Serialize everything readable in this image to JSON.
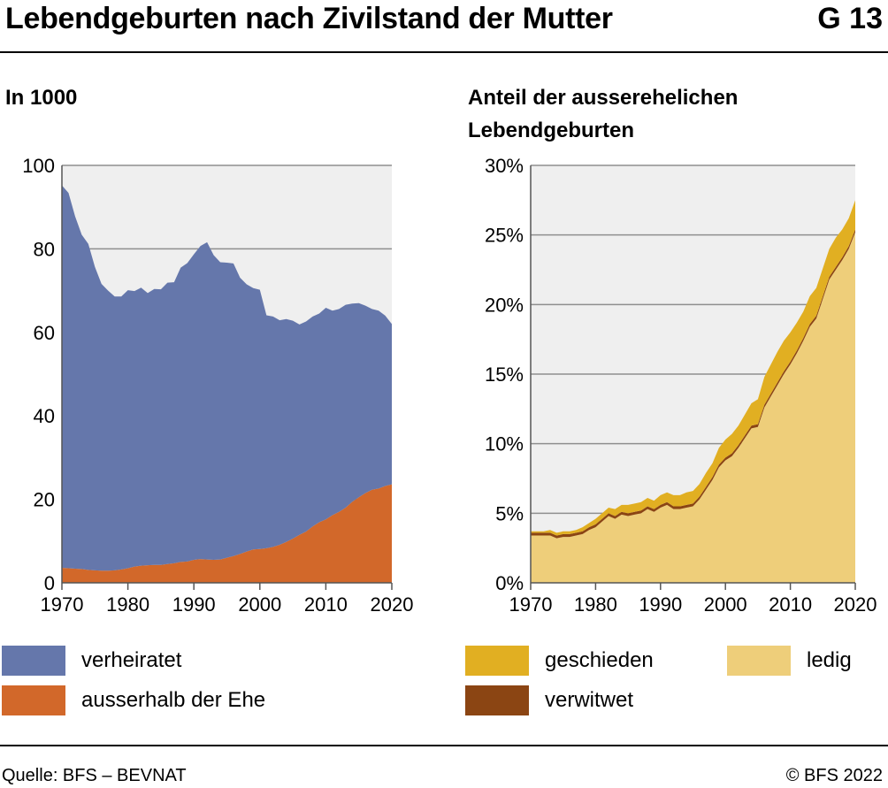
{
  "header": {
    "title": "Lebendgeburten nach Zivilstand der Mutter",
    "code": "G 13"
  },
  "footer": {
    "source": "Quelle: BFS – BEVNAT",
    "copyright": "© BFS 2022"
  },
  "chart_data": [
    {
      "type": "area",
      "title": "In 1000",
      "stacked": true,
      "x": [
        1970,
        1971,
        1972,
        1973,
        1974,
        1975,
        1976,
        1977,
        1978,
        1979,
        1980,
        1981,
        1982,
        1983,
        1984,
        1985,
        1986,
        1987,
        1988,
        1989,
        1990,
        1991,
        1992,
        1993,
        1994,
        1995,
        1996,
        1997,
        1998,
        1999,
        2000,
        2001,
        2002,
        2003,
        2004,
        2005,
        2006,
        2007,
        2008,
        2009,
        2010,
        2011,
        2012,
        2013,
        2014,
        2015,
        2016,
        2017,
        2018,
        2019,
        2020
      ],
      "series": [
        {
          "name": "ausserhalb der Ehe",
          "color": "#d2682a",
          "values": [
            3.6,
            3.5,
            3.4,
            3.3,
            3.1,
            3.0,
            2.9,
            2.9,
            3.0,
            3.2,
            3.5,
            3.9,
            4.1,
            4.2,
            4.3,
            4.3,
            4.5,
            4.7,
            5.0,
            5.1,
            5.5,
            5.7,
            5.6,
            5.5,
            5.6,
            6.0,
            6.4,
            6.9,
            7.5,
            8.0,
            8.1,
            8.3,
            8.6,
            9.1,
            9.8,
            10.6,
            11.5,
            12.3,
            13.5,
            14.5,
            15.2,
            16.2,
            17.0,
            18.0,
            19.4,
            20.5,
            21.5,
            22.3,
            22.6,
            23.2,
            23.6
          ]
        },
        {
          "name": "verheiratet",
          "color": "#6577ab",
          "values": [
            91.6,
            89.9,
            84.4,
            80.1,
            78.1,
            72.7,
            68.7,
            67.1,
            65.6,
            65.4,
            66.6,
            66.0,
            66.6,
            65.2,
            66.1,
            66.0,
            67.4,
            67.3,
            70.5,
            71.5,
            73.2,
            75.0,
            76.0,
            73.0,
            71.2,
            70.7,
            70.1,
            66.2,
            64.0,
            62.6,
            62.1,
            55.8,
            55.2,
            53.8,
            53.4,
            52.2,
            50.4,
            50.3,
            50.3,
            50.0,
            50.7,
            49.0,
            48.6,
            48.6,
            47.5,
            46.5,
            44.9,
            43.3,
            42.6,
            40.8,
            38.4
          ]
        }
      ],
      "ylim": [
        0,
        100
      ],
      "yticks": [
        "0",
        "20",
        "40",
        "60",
        "80",
        "100"
      ],
      "xticks": [
        "1970",
        "1980",
        "1990",
        "2000",
        "2010",
        "2020"
      ]
    },
    {
      "type": "area",
      "title": "Anteil der ausserehelichen Lebendgeburten",
      "stacked": true,
      "x": [
        1970,
        1971,
        1972,
        1973,
        1974,
        1975,
        1976,
        1977,
        1978,
        1979,
        1980,
        1981,
        1982,
        1983,
        1984,
        1985,
        1986,
        1987,
        1988,
        1989,
        1990,
        1991,
        1992,
        1993,
        1994,
        1995,
        1996,
        1997,
        1998,
        1999,
        2000,
        2001,
        2002,
        2003,
        2004,
        2005,
        2006,
        2007,
        2008,
        2009,
        2010,
        2011,
        2012,
        2013,
        2014,
        2015,
        2016,
        2017,
        2018,
        2019,
        2020
      ],
      "series": [
        {
          "name": "ledig",
          "color": "#eece7a",
          "values": [
            3.4,
            3.4,
            3.4,
            3.4,
            3.2,
            3.3,
            3.3,
            3.4,
            3.5,
            3.8,
            4.0,
            4.4,
            4.8,
            4.6,
            4.9,
            4.8,
            4.9,
            5.0,
            5.3,
            5.1,
            5.4,
            5.6,
            5.3,
            5.3,
            5.4,
            5.5,
            6.0,
            6.7,
            7.4,
            8.3,
            8.8,
            9.1,
            9.7,
            10.4,
            11.1,
            11.2,
            12.6,
            13.4,
            14.2,
            15.0,
            15.7,
            16.5,
            17.4,
            18.4,
            19.0,
            20.4,
            21.8,
            22.5,
            23.2,
            24.0,
            25.2
          ]
        },
        {
          "name": "verwitwet",
          "color": "#8b4513",
          "values": [
            0.2,
            0.2,
            0.2,
            0.2,
            0.2,
            0.2,
            0.2,
            0.2,
            0.2,
            0.2,
            0.2,
            0.2,
            0.2,
            0.2,
            0.2,
            0.2,
            0.2,
            0.2,
            0.2,
            0.2,
            0.2,
            0.2,
            0.2,
            0.2,
            0.2,
            0.2,
            0.2,
            0.2,
            0.2,
            0.2,
            0.2,
            0.2,
            0.2,
            0.2,
            0.2,
            0.2,
            0.2,
            0.2,
            0.2,
            0.2,
            0.2,
            0.2,
            0.2,
            0.2,
            0.2,
            0.2,
            0.2,
            0.2,
            0.2,
            0.2,
            0.2
          ]
        },
        {
          "name": "geschieden",
          "color": "#e1af22",
          "values": [
            0.1,
            0.1,
            0.1,
            0.2,
            0.2,
            0.2,
            0.2,
            0.2,
            0.3,
            0.3,
            0.4,
            0.4,
            0.4,
            0.5,
            0.5,
            0.6,
            0.6,
            0.6,
            0.6,
            0.6,
            0.7,
            0.7,
            0.8,
            0.8,
            0.9,
            0.9,
            0.9,
            1.0,
            1.0,
            1.2,
            1.3,
            1.4,
            1.4,
            1.5,
            1.6,
            1.8,
            2.0,
            2.1,
            2.2,
            2.2,
            2.1,
            2.0,
            1.9,
            2.0,
            2.0,
            2.0,
            2.0,
            2.1,
            2.0,
            2.0,
            2.1
          ]
        }
      ],
      "ylim": [
        0,
        30
      ],
      "yticks": [
        "0%",
        "5%",
        "10%",
        "15%",
        "20%",
        "25%",
        "30%"
      ],
      "xticks": [
        "1970",
        "1980",
        "1990",
        "2000",
        "2010",
        "2020"
      ]
    }
  ]
}
